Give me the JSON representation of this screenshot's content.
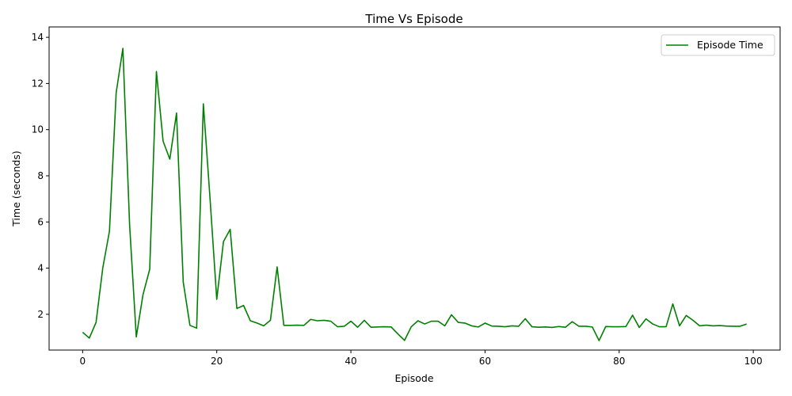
{
  "chart_data": {
    "type": "line",
    "title": "Time Vs Episode",
    "xlabel": "Episode",
    "ylabel": "Time (seconds)",
    "xlim": [
      -5,
      104
    ],
    "ylim": [
      0.45,
      14.45
    ],
    "xticks": [
      0,
      20,
      40,
      60,
      80,
      100
    ],
    "yticks": [
      2,
      4,
      6,
      8,
      10,
      12,
      14
    ],
    "grid": false,
    "legend_position": "top-right",
    "series": [
      {
        "name": "Episode Time",
        "color": "#008000",
        "x": [
          0,
          1,
          2,
          3,
          4,
          5,
          6,
          7,
          8,
          9,
          10,
          11,
          12,
          13,
          14,
          15,
          16,
          17,
          18,
          19,
          20,
          21,
          22,
          23,
          24,
          25,
          26,
          27,
          28,
          29,
          30,
          31,
          32,
          33,
          34,
          35,
          36,
          37,
          38,
          39,
          40,
          41,
          42,
          43,
          44,
          45,
          46,
          47,
          48,
          49,
          50,
          51,
          52,
          53,
          54,
          55,
          56,
          57,
          58,
          59,
          60,
          61,
          62,
          63,
          64,
          65,
          66,
          67,
          68,
          69,
          70,
          71,
          72,
          73,
          74,
          75,
          76,
          77,
          78,
          79,
          80,
          81,
          82,
          83,
          84,
          85,
          86,
          87,
          88,
          89,
          90,
          91,
          92,
          93,
          94,
          95,
          96,
          97,
          98,
          99
        ],
        "values": [
          1.22,
          0.97,
          1.65,
          4.0,
          5.6,
          11.6,
          13.52,
          5.9,
          1.02,
          2.85,
          3.95,
          12.52,
          9.5,
          8.72,
          10.72,
          3.4,
          1.52,
          1.4,
          11.12,
          7.0,
          2.65,
          5.15,
          5.68,
          2.25,
          2.38,
          1.72,
          1.62,
          1.5,
          1.74,
          4.05,
          1.52,
          1.52,
          1.53,
          1.52,
          1.78,
          1.72,
          1.74,
          1.7,
          1.46,
          1.48,
          1.7,
          1.44,
          1.74,
          1.44,
          1.45,
          1.46,
          1.45,
          1.15,
          0.87,
          1.46,
          1.72,
          1.58,
          1.7,
          1.7,
          1.5,
          1.98,
          1.65,
          1.62,
          1.5,
          1.45,
          1.62,
          1.49,
          1.48,
          1.46,
          1.5,
          1.48,
          1.81,
          1.46,
          1.44,
          1.45,
          1.43,
          1.47,
          1.44,
          1.68,
          1.48,
          1.48,
          1.45,
          0.86,
          1.47,
          1.46,
          1.46,
          1.47,
          1.96,
          1.43,
          1.8,
          1.58,
          1.46,
          1.46,
          2.45,
          1.5,
          1.95,
          1.74,
          1.5,
          1.53,
          1.5,
          1.51,
          1.49,
          1.48,
          1.48,
          1.58
        ]
      }
    ]
  }
}
